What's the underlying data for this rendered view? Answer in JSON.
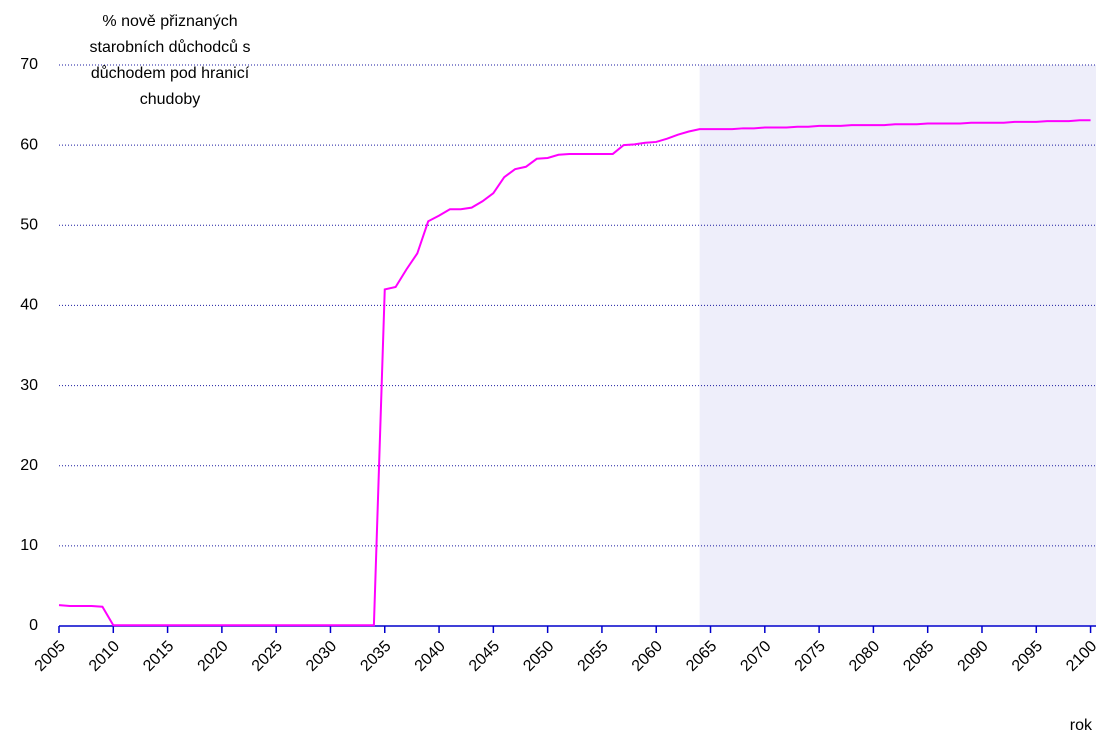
{
  "chart_data": {
    "type": "line",
    "ylabel": [
      "% nově přiznaných",
      "starobních důchodců s",
      "důchodem pod hranicí",
      "chudoby"
    ],
    "xlabel": "rok",
    "x": [
      2005,
      2006,
      2007,
      2008,
      2009,
      2010,
      2011,
      2012,
      2013,
      2014,
      2015,
      2016,
      2017,
      2018,
      2019,
      2020,
      2021,
      2022,
      2023,
      2024,
      2025,
      2026,
      2027,
      2028,
      2029,
      2030,
      2031,
      2032,
      2033,
      2034,
      2035,
      2036,
      2037,
      2038,
      2039,
      2040,
      2041,
      2042,
      2043,
      2044,
      2045,
      2046,
      2047,
      2048,
      2049,
      2050,
      2051,
      2052,
      2053,
      2054,
      2055,
      2056,
      2057,
      2058,
      2059,
      2060,
      2061,
      2062,
      2063,
      2064,
      2065,
      2066,
      2067,
      2068,
      2069,
      2070,
      2071,
      2072,
      2073,
      2074,
      2075,
      2076,
      2077,
      2078,
      2079,
      2080,
      2081,
      2082,
      2083,
      2084,
      2085,
      2086,
      2087,
      2088,
      2089,
      2090,
      2091,
      2092,
      2093,
      2094,
      2095,
      2096,
      2097,
      2098,
      2099,
      2100
    ],
    "series": [
      {
        "color": "#ff00ff",
        "values": [
          2.6,
          2.5,
          2.5,
          2.5,
          2.4,
          0.1,
          0.1,
          0.1,
          0.1,
          0.1,
          0.1,
          0.1,
          0.1,
          0.1,
          0.1,
          0.1,
          0.1,
          0.1,
          0.1,
          0.1,
          0.1,
          0.1,
          0.1,
          0.1,
          0.1,
          0.1,
          0.1,
          0.1,
          0.1,
          0.1,
          42,
          42.3,
          44.5,
          46.5,
          50.5,
          51.2,
          52,
          52,
          52.2,
          53,
          54,
          56,
          57,
          57.3,
          58.3,
          58.4,
          58.8,
          58.9,
          58.9,
          58.9,
          58.9,
          58.9,
          60,
          60.1,
          60.3,
          60.4,
          60.8,
          61.3,
          61.7,
          62,
          62,
          62,
          62,
          62.1,
          62.1,
          62.2,
          62.2,
          62.2,
          62.3,
          62.3,
          62.4,
          62.4,
          62.4,
          62.5,
          62.5,
          62.5,
          62.5,
          62.6,
          62.6,
          62.6,
          62.7,
          62.7,
          62.7,
          62.7,
          62.8,
          62.8,
          62.8,
          62.8,
          62.9,
          62.9,
          62.9,
          63,
          63,
          63,
          63.1,
          63.1
        ]
      }
    ],
    "xlim": [
      2005,
      2100.5
    ],
    "xticks": [
      2005,
      2010,
      2015,
      2020,
      2025,
      2030,
      2035,
      2040,
      2045,
      2050,
      2055,
      2060,
      2065,
      2070,
      2075,
      2080,
      2085,
      2090,
      2095,
      2100
    ],
    "ylim": [
      0,
      70
    ],
    "yticks": [
      0,
      10,
      20,
      30,
      40,
      50,
      60,
      70
    ],
    "grid": true,
    "highlight_xrange": [
      2064,
      2100.5
    ],
    "highlight_color": "#eeeefa"
  }
}
